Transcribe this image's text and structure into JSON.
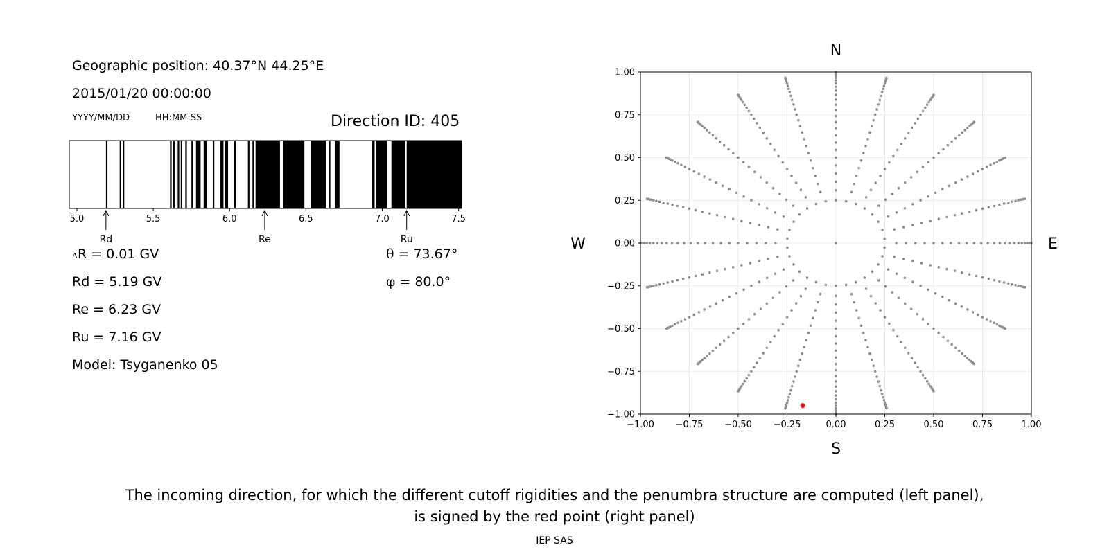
{
  "info": {
    "geo_position": "Geographic position: 40.37°N 44.25°E",
    "datetime": "2015/01/20 00:00:00",
    "date_format": "YYYY/MM/DD",
    "time_format": "HH:MM:SS",
    "direction_id": "Direction ID: 405",
    "delta_r_symbol": "Δ",
    "delta_r": "R = 0.01 GV",
    "rd": "Rd = 5.19 GV",
    "re": "Re = 6.23 GV",
    "ru": "Ru = 7.16 GV",
    "model": "Model: Tsyganenko 05",
    "theta_symbol": "θ",
    "theta": "= 73.67°",
    "phi_symbol": "φ",
    "phi": "= 80.0°"
  },
  "caption": {
    "line1": "The incoming direction, for which the different cutoff rigidities and the penumbra structure are computed (left panel),",
    "line2": "is signed by the red point (right panel)",
    "credit": "IEP SAS"
  },
  "chart_data": [
    {
      "type": "bar",
      "description": "penumbra structure",
      "xlim": [
        4.95,
        7.52
      ],
      "xticks": [
        5.0,
        5.5,
        6.0,
        6.5,
        7.0,
        7.5
      ],
      "xtick_labels": [
        "5.0",
        "5.5",
        "6.0",
        "6.5",
        "7.0",
        "7.5"
      ],
      "forbidden_intervals": [
        [
          5.19,
          5.2
        ],
        [
          5.28,
          5.29
        ],
        [
          5.3,
          5.31
        ],
        [
          5.61,
          5.62
        ],
        [
          5.63,
          5.64
        ],
        [
          5.66,
          5.67
        ],
        [
          5.68,
          5.69
        ],
        [
          5.71,
          5.72
        ],
        [
          5.75,
          5.76
        ],
        [
          5.78,
          5.81
        ],
        [
          5.83,
          5.85
        ],
        [
          5.89,
          5.9
        ],
        [
          5.94,
          5.96
        ],
        [
          5.97,
          5.99
        ],
        [
          6.03,
          6.04
        ],
        [
          6.12,
          6.13
        ],
        [
          6.15,
          6.16
        ],
        [
          6.17,
          6.33
        ],
        [
          6.35,
          6.49
        ],
        [
          6.53,
          6.63
        ],
        [
          6.65,
          6.66
        ],
        [
          6.69,
          6.72
        ],
        [
          6.93,
          6.95
        ],
        [
          6.96,
          7.03
        ],
        [
          7.06,
          7.15
        ],
        [
          7.16,
          7.52
        ]
      ],
      "markers": [
        {
          "label": "Rd",
          "value": 5.19
        },
        {
          "label": "Re",
          "value": 6.23
        },
        {
          "label": "Ru",
          "value": 7.16
        }
      ]
    },
    {
      "type": "scatter",
      "description": "incoming directions",
      "xlim": [
        -1.0,
        1.0
      ],
      "ylim": [
        -1.0,
        1.0
      ],
      "xticks": [
        -1.0,
        -0.75,
        -0.5,
        -0.25,
        0.0,
        0.25,
        0.5,
        0.75,
        1.0
      ],
      "xtick_labels": [
        "−1.00",
        "−0.75",
        "−0.50",
        "−0.25",
        "0.00",
        "0.25",
        "0.50",
        "0.75",
        "1.00"
      ],
      "yticks": [
        -1.0,
        -0.75,
        -0.5,
        -0.25,
        0.0,
        0.25,
        0.5,
        0.75,
        1.0
      ],
      "ytick_labels": [
        "−1.00",
        "−0.75",
        "−0.50",
        "−0.25",
        "0.00",
        "0.25",
        "0.50",
        "0.75",
        "1.00"
      ],
      "grid": true,
      "compass": {
        "north": "N",
        "south": "S",
        "west": "W",
        "east": "E"
      },
      "radial_rays": 24,
      "points_per_ray": 30,
      "inner_ring_radius": 0.25,
      "point_color": "#8f8f8f",
      "highlight": {
        "x": -0.17,
        "y": -0.95,
        "color": "#e41a1c"
      }
    }
  ]
}
